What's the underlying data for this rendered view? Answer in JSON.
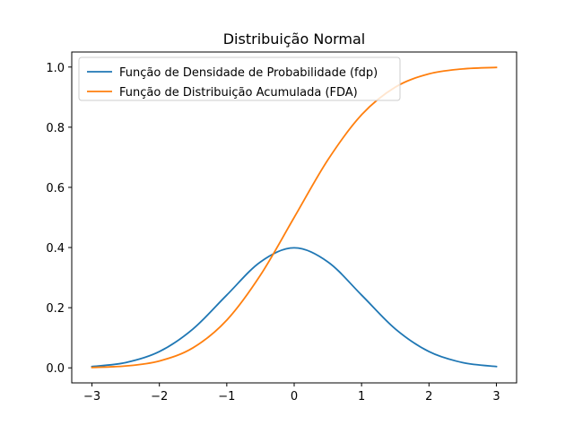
{
  "chart_data": {
    "type": "line",
    "title": "Distribuição Normal",
    "xlabel": "",
    "ylabel": "",
    "xlim": [
      -3.3,
      3.3
    ],
    "ylim": [
      -0.05,
      1.05
    ],
    "x_ticks": [
      -3,
      -2,
      -1,
      0,
      1,
      2,
      3
    ],
    "x_tick_labels": [
      "−3",
      "−2",
      "−1",
      "0",
      "1",
      "2",
      "3"
    ],
    "y_ticks": [
      0.0,
      0.2,
      0.4,
      0.6,
      0.8,
      1.0
    ],
    "y_tick_labels": [
      "0.0",
      "0.2",
      "0.4",
      "0.6",
      "0.8",
      "1.0"
    ],
    "grid": false,
    "legend_position": "top-left",
    "x": [
      -3.0,
      -2.5,
      -2.0,
      -1.5,
      -1.0,
      -0.5,
      0.0,
      0.5,
      1.0,
      1.5,
      2.0,
      2.5,
      3.0
    ],
    "series": [
      {
        "name": "Função de Densidade de Probabilidade (fdp)",
        "color": "#1f77b4",
        "values": [
          0.0044,
          0.0175,
          0.054,
          0.1295,
          0.242,
          0.3521,
          0.3989,
          0.3521,
          0.242,
          0.1295,
          0.054,
          0.0175,
          0.0044
        ]
      },
      {
        "name": "Função de Distribuição Acumulada (FDA)",
        "color": "#ff7f0e",
        "values": [
          0.0013,
          0.0062,
          0.0228,
          0.0668,
          0.1587,
          0.3085,
          0.5,
          0.6915,
          0.8413,
          0.9332,
          0.9772,
          0.9938,
          0.9987
        ]
      }
    ]
  }
}
